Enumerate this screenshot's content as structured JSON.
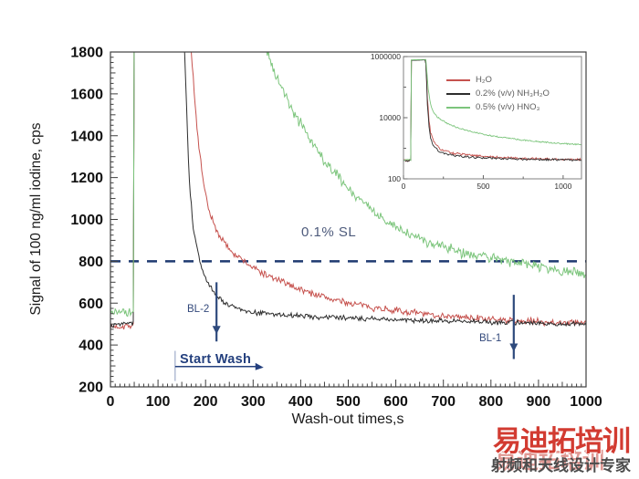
{
  "watermark": {
    "title": "易迪拓培训",
    "subtitle": "射频和天线设计专家",
    "title_color": "#d23b31",
    "ghost_color": "#c2362c",
    "subtitle_color": "#4c4c4c"
  },
  "chart_data": [
    {
      "id": "main",
      "type": "line",
      "xlabel": "Wash-out times,s",
      "ylabel": "Signal of 100 ng/ml iodine, cps",
      "xlim": [
        0,
        1000
      ],
      "ylim": [
        200,
        1800
      ],
      "xticks": [
        0,
        100,
        200,
        300,
        400,
        500,
        600,
        700,
        800,
        900,
        1000
      ],
      "yticks": [
        200,
        400,
        600,
        800,
        1000,
        1200,
        1400,
        1600,
        1800
      ],
      "x_minor_step": 10,
      "y_minor_step": 25,
      "grid": false,
      "reference_line": {
        "y": 800,
        "label": "0.1% SL",
        "style": "dashed",
        "color": "#1e3a70",
        "label_color": "#4e5b7c"
      },
      "annotations": [
        {
          "label": "BL-2",
          "type": "arrow-down",
          "x": 223,
          "y_from": 700,
          "y_to": 452,
          "color": "#2e4a7d"
        },
        {
          "label": "BL-1",
          "type": "arrow-down",
          "x": 848,
          "y_from": 640,
          "y_to": 368,
          "color": "#2e4a7d"
        },
        {
          "label": "Start Wash",
          "type": "wash-marker",
          "line_x": 136,
          "line_y_from": 228,
          "line_y_to": 372,
          "arrow_y": 297,
          "arrow_x_from": 136,
          "arrow_x_to": 322,
          "color": "#24407e"
        }
      ],
      "series": [
        {
          "name": "H2O",
          "color": "#c6524e",
          "noise": 20,
          "points": [
            [
              0,
              485
            ],
            [
              48,
              495
            ],
            [
              49,
              495
            ],
            [
              50,
              2050
            ],
            [
              160,
              2050
            ],
            [
              170,
              1800
            ],
            [
              182,
              1430
            ],
            [
              194,
              1190
            ],
            [
              207,
              1040
            ],
            [
              222,
              950
            ],
            [
              242,
              880
            ],
            [
              263,
              830
            ],
            [
              290,
              785
            ],
            [
              320,
              742
            ],
            [
              360,
              702
            ],
            [
              410,
              658
            ],
            [
              460,
              622
            ],
            [
              510,
              597
            ],
            [
              560,
              577
            ],
            [
              620,
              558
            ],
            [
              690,
              542
            ],
            [
              760,
              528
            ],
            [
              850,
              516
            ],
            [
              920,
              510
            ],
            [
              1000,
              505
            ]
          ]
        },
        {
          "name": "0.2% (v/v) NH3H2O",
          "color": "#2d2d2d",
          "noise": 15,
          "points": [
            [
              0,
              495
            ],
            [
              48,
              505
            ],
            [
              49,
              505
            ],
            [
              50,
              2050
            ],
            [
              148,
              2050
            ],
            [
              156,
              1800
            ],
            [
              165,
              1210
            ],
            [
              174,
              960
            ],
            [
              186,
              815
            ],
            [
              200,
              718
            ],
            [
              216,
              655
            ],
            [
              236,
              610
            ],
            [
              260,
              580
            ],
            [
              288,
              560
            ],
            [
              330,
              549
            ],
            [
              385,
              541
            ],
            [
              445,
              534
            ],
            [
              520,
              527
            ],
            [
              600,
              520
            ],
            [
              700,
              514
            ],
            [
              800,
              509
            ],
            [
              900,
              504
            ],
            [
              1000,
              500
            ]
          ]
        },
        {
          "name": "0.5% (v/v) HNO3",
          "color": "#7cc57c",
          "noise": 32,
          "points": [
            [
              0,
              560
            ],
            [
              48,
              565
            ],
            [
              49,
              565
            ],
            [
              50,
              2050
            ],
            [
              298,
              2050
            ],
            [
              312,
              1930
            ],
            [
              330,
              1800
            ],
            [
              346,
              1700
            ],
            [
              363,
              1612
            ],
            [
              383,
              1516
            ],
            [
              403,
              1446
            ],
            [
              433,
              1336
            ],
            [
              463,
              1246
            ],
            [
              493,
              1166
            ],
            [
              523,
              1096
            ],
            [
              553,
              1036
            ],
            [
              583,
              986
            ],
            [
              623,
              936
            ],
            [
              663,
              896
            ],
            [
              703,
              866
            ],
            [
              743,
              843
            ],
            [
              783,
              821
            ],
            [
              823,
              806
            ],
            [
              863,
              791
            ],
            [
              903,
              776
            ],
            [
              953,
              756
            ],
            [
              1000,
              737
            ]
          ]
        }
      ]
    },
    {
      "id": "inset",
      "type": "line",
      "yscale": "log",
      "xlim": [
        0,
        1115
      ],
      "ylim": [
        100,
        1000000
      ],
      "xticks": [
        0,
        500,
        1000
      ],
      "x_minor_ticks": [
        250,
        750
      ],
      "yticks": [
        100,
        10000,
        1000000
      ],
      "y_decade_ticks": [
        100,
        1000,
        10000,
        100000,
        1000000
      ],
      "legend": [
        {
          "label": "H₂O"
        },
        {
          "label": "0.2% (v/v) NH₃H₂O"
        },
        {
          "label": "0.5% (v/v) HNO₃"
        }
      ],
      "series": [
        {
          "name": "H2O",
          "color": "#c6524e",
          "noise": 0.035,
          "points": [
            [
              0,
              400
            ],
            [
              44,
              400
            ],
            [
              46,
              400
            ],
            [
              48,
              760000
            ],
            [
              138,
              790000
            ],
            [
              144,
              200000
            ],
            [
              150,
              40000
            ],
            [
              158,
              9000
            ],
            [
              168,
              3600
            ],
            [
              182,
              2000
            ],
            [
              200,
              1300
            ],
            [
              230,
              950
            ],
            [
              270,
              780
            ],
            [
              320,
              680
            ],
            [
              400,
              600
            ],
            [
              500,
              545
            ],
            [
              620,
              500
            ],
            [
              750,
              465
            ],
            [
              900,
              445
            ],
            [
              1100,
              430
            ]
          ]
        },
        {
          "name": "0.2% (v/v) NH3H2O",
          "color": "#2d2d2d",
          "noise": 0.03,
          "points": [
            [
              0,
              380
            ],
            [
              44,
              385
            ],
            [
              46,
              385
            ],
            [
              48,
              750000
            ],
            [
              138,
              780000
            ],
            [
              144,
              150000
            ],
            [
              150,
              25000
            ],
            [
              158,
              5500
            ],
            [
              168,
              2400
            ],
            [
              182,
              1400
            ],
            [
              200,
              1000
            ],
            [
              230,
              750
            ],
            [
              270,
              640
            ],
            [
              320,
              570
            ],
            [
              400,
              520
            ],
            [
              500,
              485
            ],
            [
              620,
              460
            ],
            [
              750,
              440
            ],
            [
              900,
              425
            ],
            [
              1100,
              415
            ]
          ]
        },
        {
          "name": "0.5% (v/v) HNO3",
          "color": "#7cc57c",
          "noise": 0.022,
          "points": [
            [
              0,
              420
            ],
            [
              44,
              420
            ],
            [
              46,
              420
            ],
            [
              48,
              780000
            ],
            [
              140,
              800000
            ],
            [
              146,
              300000
            ],
            [
              154,
              90000
            ],
            [
              163,
              40000
            ],
            [
              175,
              22000
            ],
            [
              190,
              14500
            ],
            [
              210,
              10800
            ],
            [
              240,
              8200
            ],
            [
              280,
              6300
            ],
            [
              330,
              4900
            ],
            [
              400,
              3800
            ],
            [
              480,
              3000
            ],
            [
              560,
              2500
            ],
            [
              650,
              2150
            ],
            [
              750,
              1850
            ],
            [
              850,
              1640
            ],
            [
              950,
              1480
            ],
            [
              1100,
              1320
            ]
          ]
        }
      ]
    }
  ]
}
